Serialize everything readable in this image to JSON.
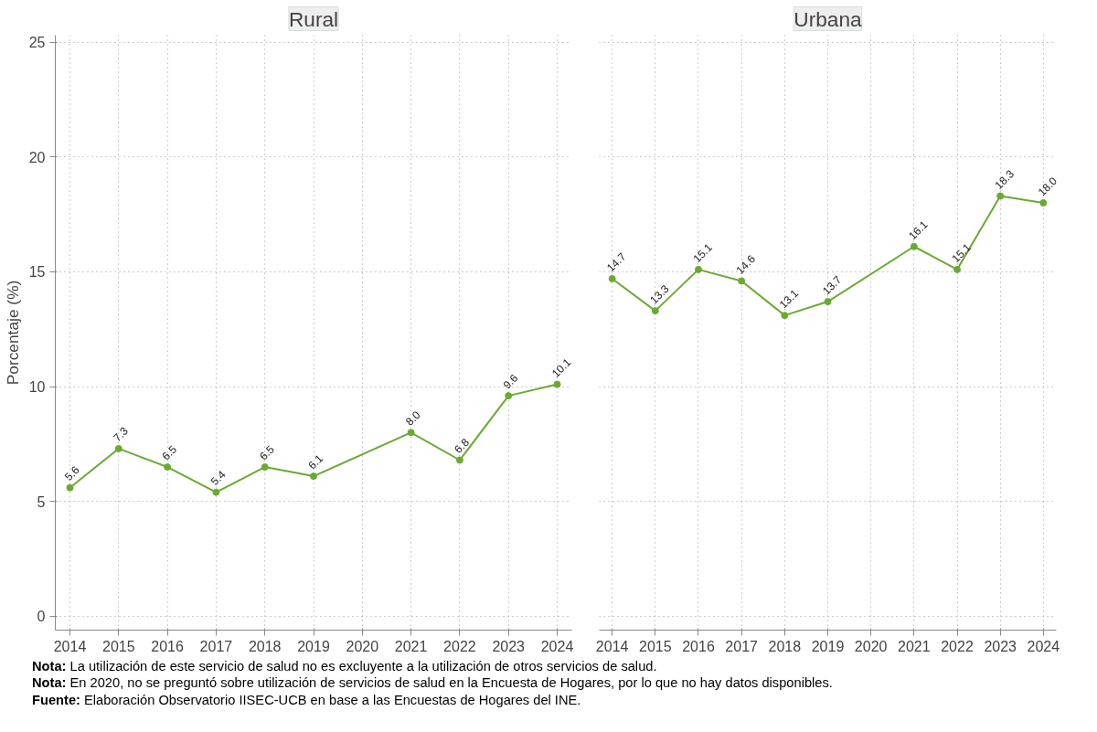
{
  "chart_data": [
    {
      "type": "line",
      "title": "Rural",
      "ylabel": "Porcentaje (%)",
      "xlim": [
        2013.7,
        2024.3
      ],
      "xticks": [
        2014,
        2015,
        2016,
        2017,
        2018,
        2019,
        2020,
        2021,
        2022,
        2023,
        2024
      ],
      "ylim": [
        -0.6,
        25.3
      ],
      "yticks": [
        0,
        5,
        10,
        15,
        20,
        25
      ],
      "grid": true,
      "marker": "circle",
      "series": [
        {
          "color": "#6aaa32",
          "x": [
            2014,
            2015,
            2016,
            2017,
            2018,
            2019,
            2021,
            2022,
            2023,
            2024
          ],
          "values": [
            5.6,
            7.3,
            6.5,
            5.4,
            6.5,
            6.1,
            8.0,
            6.8,
            9.6,
            10.1
          ],
          "value_labels": [
            "5.6",
            "7.3",
            "6.5",
            "5.4",
            "6.5",
            "6.1",
            "8.0",
            "6.8",
            "9.6",
            "10.1"
          ]
        }
      ],
      "annotations": [
        "Nota: La utilización de este servicio de salud no es excluyente a la utilización de otros servicios de salud.",
        "Nota: En 2020, no se preguntó sobre utilización de servicios de salud en la Encuesta de Hogares, por lo que no hay datos disponibles.",
        "Fuente: Elaboración Observatorio IISEC-UCB en base a las Encuestas de Hogares del INE."
      ]
    },
    {
      "type": "line",
      "title": "Urbana",
      "xlim": [
        2013.7,
        2024.3
      ],
      "xticks": [
        2014,
        2015,
        2016,
        2017,
        2018,
        2019,
        2020,
        2021,
        2022,
        2023,
        2024
      ],
      "ylim": [
        -0.6,
        25.3
      ],
      "yticks": [
        0,
        5,
        10,
        15,
        20,
        25
      ],
      "grid": true,
      "marker": "circle",
      "tick_labels": "x",
      "series": [
        {
          "color": "#6aaa32",
          "x": [
            2014,
            2015,
            2016,
            2017,
            2018,
            2019,
            2021,
            2022,
            2023,
            2024
          ],
          "values": [
            14.7,
            13.3,
            15.1,
            14.6,
            13.1,
            13.7,
            16.1,
            15.1,
            18.3,
            18.0
          ],
          "value_labels": [
            "14.7",
            "13.3",
            "15.1",
            "14.6",
            "13.1",
            "13.7",
            "16.1",
            "15.1",
            "18.3",
            "18.0"
          ]
        }
      ]
    }
  ]
}
